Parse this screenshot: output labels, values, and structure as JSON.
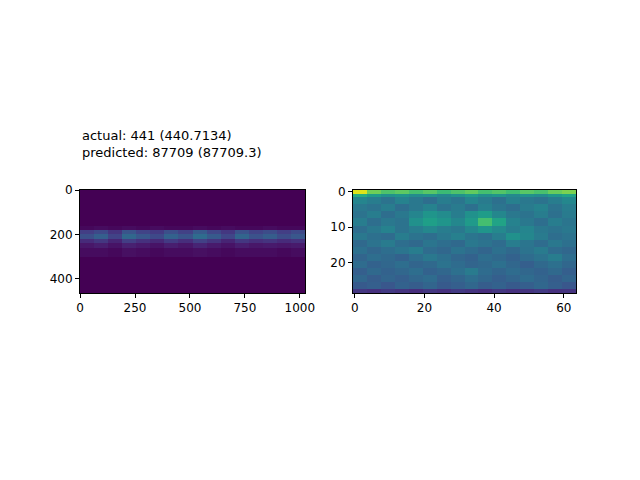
{
  "chart_data": [
    {
      "type": "heatmap",
      "title": [
        "actual: 441 (440.7134)",
        "predicted: 87709 (87709.3)"
      ],
      "color": "viridis",
      "zlim": [
        0,
        1
      ],
      "x": [
        -0.5,
        63.5,
        127.5,
        191.5,
        255.5,
        319.5,
        383.5,
        447.5,
        511.5,
        575.5,
        639.5,
        703.5,
        767.5,
        831.5,
        895.5,
        959.5,
        1023.5
      ],
      "y": [
        -0.5,
        60,
        120,
        160,
        180,
        200,
        220,
        240,
        260,
        300,
        360,
        420,
        464.5
      ],
      "xlim": [
        -0.5,
        1023.5
      ],
      "ylim": [
        464.5,
        -0.5
      ],
      "xticks": [
        0,
        250,
        500,
        750,
        1000
      ],
      "yticks": [
        0,
        200,
        400
      ],
      "cells": [
        [
          0,
          0,
          0,
          0,
          0,
          0,
          0,
          0,
          0,
          0,
          0,
          0,
          0,
          0,
          0,
          0
        ],
        [
          0,
          0,
          0,
          0,
          0,
          0,
          0,
          0,
          0,
          0,
          0,
          0,
          0,
          0,
          0,
          0
        ],
        [
          0,
          0,
          0,
          0,
          0,
          0,
          0,
          0,
          0,
          0,
          0,
          0,
          0,
          0,
          0,
          0
        ],
        [
          0.02,
          0.03,
          0.02,
          0.03,
          0.02,
          0.03,
          0.02,
          0.02,
          0.03,
          0.02,
          0.03,
          0.02,
          0.02,
          0.03,
          0.02,
          0.02
        ],
        [
          0.18,
          0.22,
          0.15,
          0.26,
          0.2,
          0.17,
          0.24,
          0.19,
          0.28,
          0.21,
          0.16,
          0.25,
          0.2,
          0.23,
          0.18,
          0.22
        ],
        [
          0.24,
          0.3,
          0.2,
          0.33,
          0.27,
          0.22,
          0.31,
          0.26,
          0.35,
          0.28,
          0.21,
          0.32,
          0.25,
          0.29,
          0.23,
          0.27
        ],
        [
          0.12,
          0.16,
          0.1,
          0.18,
          0.14,
          0.11,
          0.17,
          0.13,
          0.19,
          0.15,
          0.1,
          0.16,
          0.13,
          0.15,
          0.12,
          0.14
        ],
        [
          0.06,
          0.08,
          0.05,
          0.09,
          0.07,
          0.05,
          0.08,
          0.06,
          0.1,
          0.07,
          0.05,
          0.08,
          0.06,
          0.07,
          0.06,
          0.07
        ],
        [
          0.03,
          0.03,
          0.02,
          0.04,
          0.03,
          0.02,
          0.03,
          0.03,
          0.04,
          0.03,
          0.02,
          0.03,
          0.03,
          0.03,
          0.02,
          0.03
        ],
        [
          0,
          0,
          0,
          0,
          0,
          0,
          0,
          0,
          0,
          0,
          0,
          0,
          0,
          0,
          0,
          0
        ],
        [
          0,
          0,
          0,
          0,
          0,
          0,
          0,
          0,
          0,
          0,
          0,
          0,
          0,
          0,
          0,
          0
        ],
        [
          0,
          0,
          0,
          0,
          0,
          0,
          0,
          0,
          0,
          0,
          0,
          0,
          0,
          0,
          0,
          0
        ]
      ]
    },
    {
      "type": "heatmap",
      "color": "viridis",
      "zlim": [
        0,
        1
      ],
      "x": [
        -0.5,
        3.5,
        7.5,
        11.5,
        15.5,
        19.5,
        23.5,
        27.5,
        31.5,
        35.5,
        39.5,
        43.5,
        47.5,
        51.5,
        55.5,
        59.5,
        63.5
      ],
      "y": [
        -0.5,
        0.5,
        1.5,
        3.5,
        5.5,
        7.5,
        9.5,
        11.5,
        13.5,
        15.5,
        17.5,
        19.5,
        21.5,
        23.5,
        25.5,
        27.5,
        28.5
      ],
      "xlim": [
        -0.5,
        63.5
      ],
      "ylim": [
        28.5,
        -0.5
      ],
      "xticks": [
        0,
        20,
        40,
        60
      ],
      "yticks": [
        0,
        10,
        20
      ],
      "cells": [
        [
          0.95,
          0.78,
          0.72,
          0.75,
          0.7,
          0.74,
          0.68,
          0.72,
          0.76,
          0.7,
          0.73,
          0.69,
          0.74,
          0.71,
          0.77,
          0.8
        ],
        [
          0.62,
          0.55,
          0.5,
          0.52,
          0.48,
          0.5,
          0.46,
          0.5,
          0.54,
          0.49,
          0.52,
          0.47,
          0.5,
          0.48,
          0.53,
          0.58
        ],
        [
          0.45,
          0.42,
          0.38,
          0.44,
          0.4,
          0.36,
          0.42,
          0.39,
          0.45,
          0.41,
          0.37,
          0.43,
          0.4,
          0.38,
          0.42,
          0.46
        ],
        [
          0.4,
          0.38,
          0.42,
          0.36,
          0.4,
          0.44,
          0.38,
          0.41,
          0.37,
          0.43,
          0.39,
          0.36,
          0.41,
          0.44,
          0.38,
          0.42
        ],
        [
          0.38,
          0.42,
          0.36,
          0.4,
          0.45,
          0.52,
          0.48,
          0.42,
          0.5,
          0.55,
          0.46,
          0.4,
          0.38,
          0.42,
          0.37,
          0.41
        ],
        [
          0.42,
          0.36,
          0.4,
          0.38,
          0.5,
          0.56,
          0.52,
          0.46,
          0.54,
          0.7,
          0.58,
          0.44,
          0.4,
          0.36,
          0.42,
          0.39
        ],
        [
          0.36,
          0.4,
          0.44,
          0.38,
          0.42,
          0.46,
          0.42,
          0.4,
          0.46,
          0.52,
          0.47,
          0.42,
          0.45,
          0.4,
          0.38,
          0.4
        ],
        [
          0.4,
          0.37,
          0.35,
          0.42,
          0.38,
          0.36,
          0.4,
          0.43,
          0.39,
          0.37,
          0.42,
          0.5,
          0.46,
          0.41,
          0.36,
          0.38
        ],
        [
          0.34,
          0.38,
          0.41,
          0.36,
          0.34,
          0.39,
          0.36,
          0.34,
          0.4,
          0.38,
          0.35,
          0.42,
          0.39,
          0.35,
          0.4,
          0.37
        ],
        [
          0.37,
          0.33,
          0.36,
          0.39,
          0.42,
          0.35,
          0.33,
          0.38,
          0.35,
          0.32,
          0.37,
          0.34,
          0.38,
          0.41,
          0.35,
          0.33
        ],
        [
          0.32,
          0.36,
          0.34,
          0.31,
          0.36,
          0.4,
          0.37,
          0.33,
          0.31,
          0.36,
          0.34,
          0.31,
          0.35,
          0.38,
          0.42,
          0.36
        ],
        [
          0.35,
          0.31,
          0.33,
          0.36,
          0.32,
          0.34,
          0.38,
          0.35,
          0.32,
          0.34,
          0.37,
          0.33,
          0.3,
          0.34,
          0.37,
          0.33
        ],
        [
          0.3,
          0.34,
          0.31,
          0.33,
          0.36,
          0.31,
          0.33,
          0.37,
          0.41,
          0.35,
          0.32,
          0.35,
          0.33,
          0.31,
          0.34,
          0.3
        ],
        [
          0.33,
          0.29,
          0.32,
          0.3,
          0.33,
          0.35,
          0.3,
          0.32,
          0.36,
          0.33,
          0.3,
          0.32,
          0.35,
          0.32,
          0.29,
          0.32
        ],
        [
          0.28,
          0.3,
          0.27,
          0.31,
          0.29,
          0.32,
          0.28,
          0.3,
          0.33,
          0.29,
          0.31,
          0.28,
          0.3,
          0.33,
          0.3,
          0.27
        ],
        [
          0.16,
          0.14,
          0.17,
          0.15,
          0.13,
          0.16,
          0.14,
          0.17,
          0.15,
          0.13,
          0.16,
          0.14,
          0.15,
          0.17,
          0.14,
          0.15
        ]
      ]
    }
  ]
}
